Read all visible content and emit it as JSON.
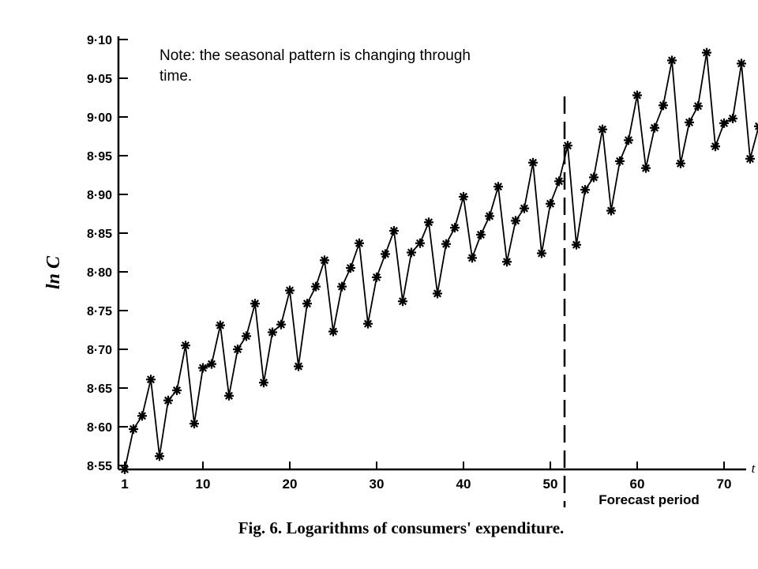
{
  "note": "Note: the seasonal pattern is changing through time.",
  "chart_data": {
    "type": "line",
    "title": "Fig. 6. Logarithms of consumers' expenditure.",
    "ylabel": "ln C",
    "xlabel": "t",
    "forecast_label": "Forecast period",
    "forecast_start": 52,
    "ylim": [
      8.55,
      9.1
    ],
    "xlim": [
      1,
      74
    ],
    "yticks": [
      8.55,
      8.6,
      8.65,
      8.7,
      8.75,
      8.8,
      8.85,
      8.9,
      8.95,
      9.0,
      9.05,
      9.1
    ],
    "ytick_labels": [
      "8·55",
      "8·60",
      "8·65",
      "8·70",
      "8·75",
      "8·80",
      "8·85",
      "8·90",
      "8·95",
      "9·00",
      "9·05",
      "9·10"
    ],
    "xticks": [
      1,
      10,
      20,
      30,
      40,
      50,
      60,
      70
    ],
    "xtick_labels": [
      "1",
      "10",
      "20",
      "30",
      "40",
      "50",
      "60",
      "70"
    ],
    "grid": false,
    "marker": "asterisk",
    "series": [
      {
        "x": [
          1,
          2,
          3,
          4,
          5,
          6,
          7,
          8,
          9,
          10,
          11,
          12,
          13,
          14,
          15,
          16,
          17,
          18,
          19,
          20,
          21,
          22,
          23,
          24,
          25,
          26,
          27,
          28,
          29,
          30,
          31,
          32,
          33,
          34,
          35,
          36,
          37,
          38,
          39,
          40,
          41,
          42,
          43,
          44,
          45,
          46,
          47,
          48,
          49,
          50,
          51,
          52,
          53,
          54,
          55,
          56,
          57,
          58,
          59,
          60,
          61,
          62,
          63,
          64,
          65,
          66,
          67,
          68,
          69,
          70,
          71,
          72,
          73,
          74
        ],
        "values": [
          8.545,
          8.597,
          8.614,
          8.661,
          8.562,
          8.634,
          8.647,
          8.705,
          8.604,
          8.676,
          8.681,
          8.731,
          8.64,
          8.7,
          8.717,
          8.759,
          8.657,
          8.722,
          8.732,
          8.776,
          8.678,
          8.759,
          8.781,
          8.815,
          8.723,
          8.781,
          8.805,
          8.837,
          8.733,
          8.793,
          8.823,
          8.853,
          8.762,
          8.825,
          8.837,
          8.864,
          8.772,
          8.836,
          8.857,
          8.897,
          8.818,
          8.848,
          8.872,
          8.91,
          8.813,
          8.866,
          8.882,
          8.941,
          8.824,
          8.888,
          8.917,
          8.963,
          8.835,
          8.906,
          8.922,
          8.984,
          8.879,
          8.943,
          8.97,
          9.028,
          8.934,
          8.986,
          9.015,
          9.073,
          8.94,
          8.993,
          9.014,
          9.083,
          8.962,
          8.992,
          8.998,
          9.069,
          8.946,
          8.988
        ]
      }
    ]
  }
}
